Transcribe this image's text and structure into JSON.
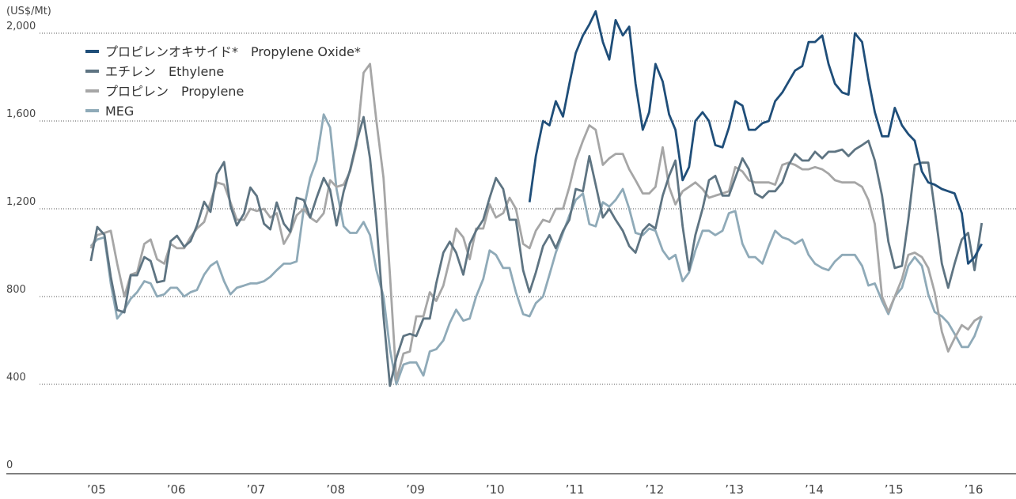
{
  "chart_data": {
    "type": "line",
    "y_label": "(US$/Mt)",
    "legend_position": "top-left",
    "grid": true,
    "ylim": [
      0,
      2000
    ],
    "yticks": [
      0,
      400,
      800,
      {
        "value": 1200,
        "label": "1,200"
      },
      {
        "value": 1600,
        "label": "1,600"
      },
      {
        "value": 2000,
        "label": "2,000"
      }
    ],
    "xlim": [
      2003.94,
      2016.6
    ],
    "xticks": [
      {
        "value": 2005,
        "label": "’05"
      },
      {
        "value": 2006,
        "label": "’06"
      },
      {
        "value": 2007,
        "label": "’07"
      },
      {
        "value": 2008,
        "label": "’08"
      },
      {
        "value": 2009,
        "label": "’09"
      },
      {
        "value": 2010,
        "label": "’10"
      },
      {
        "value": 2011,
        "label": "’11"
      },
      {
        "value": 2012,
        "label": "’12"
      },
      {
        "value": 2013,
        "label": "’13"
      },
      {
        "value": 2014,
        "label": "’14"
      },
      {
        "value": 2015,
        "label": "’15"
      },
      {
        "value": 2016,
        "label": "’16"
      }
    ],
    "x": [
      2005.0,
      2005.08,
      2005.17,
      2005.25,
      2005.33,
      2005.42,
      2005.5,
      2005.58,
      2005.67,
      2005.75,
      2005.83,
      2005.92,
      2006.0,
      2006.08,
      2006.17,
      2006.25,
      2006.33,
      2006.42,
      2006.5,
      2006.58,
      2006.67,
      2006.75,
      2006.83,
      2006.92,
      2007.0,
      2007.08,
      2007.17,
      2007.25,
      2007.33,
      2007.42,
      2007.5,
      2007.58,
      2007.67,
      2007.75,
      2007.83,
      2007.92,
      2008.0,
      2008.08,
      2008.17,
      2008.25,
      2008.33,
      2008.42,
      2008.5,
      2008.58,
      2008.67,
      2008.75,
      2008.83,
      2008.92,
      2009.0,
      2009.08,
      2009.17,
      2009.25,
      2009.33,
      2009.42,
      2009.5,
      2009.58,
      2009.67,
      2009.75,
      2009.83,
      2009.92,
      2010.0,
      2010.08,
      2010.17,
      2010.25,
      2010.33,
      2010.42,
      2010.5,
      2010.58,
      2010.67,
      2010.75,
      2010.83,
      2010.92,
      2011.0,
      2011.08,
      2011.17,
      2011.25,
      2011.33,
      2011.42,
      2011.5,
      2011.58,
      2011.67,
      2011.75,
      2011.83,
      2011.92,
      2012.0,
      2012.08,
      2012.17,
      2012.25,
      2012.33,
      2012.42,
      2012.5,
      2012.58,
      2012.67,
      2012.75,
      2012.83,
      2012.92,
      2013.0,
      2013.08,
      2013.17,
      2013.25,
      2013.33,
      2013.42,
      2013.5,
      2013.58,
      2013.67,
      2013.75,
      2013.83,
      2013.92,
      2014.0,
      2014.08,
      2014.17,
      2014.25,
      2014.33,
      2014.42,
      2014.5,
      2014.58,
      2014.67,
      2014.75,
      2014.83,
      2014.92,
      2015.0,
      2015.08,
      2015.17,
      2015.25,
      2015.33,
      2015.42,
      2015.5,
      2015.58,
      2015.67,
      2015.75,
      2015.83,
      2015.92,
      2016.0,
      2016.08,
      2016.17
    ],
    "series": [
      {
        "name": "プロピレンオキサイド*　Propylene Oxide*",
        "color": "#1f4e79",
        "values": [
          null,
          null,
          null,
          null,
          null,
          null,
          null,
          null,
          null,
          null,
          null,
          null,
          null,
          null,
          null,
          null,
          null,
          null,
          null,
          null,
          null,
          null,
          null,
          null,
          null,
          null,
          null,
          null,
          null,
          null,
          null,
          null,
          null,
          null,
          null,
          null,
          null,
          null,
          null,
          null,
          null,
          null,
          null,
          null,
          null,
          null,
          null,
          null,
          null,
          null,
          null,
          null,
          null,
          null,
          null,
          null,
          null,
          null,
          null,
          null,
          null,
          null,
          null,
          null,
          null,
          null,
          1230,
          1440,
          1600,
          1580,
          1690,
          1620,
          1770,
          1910,
          1990,
          2040,
          2100,
          1960,
          1880,
          2060,
          1990,
          2030,
          1770,
          1560,
          1640,
          1860,
          1780,
          1630,
          1560,
          1330,
          1390,
          1600,
          1640,
          1600,
          1490,
          1480,
          1570,
          1690,
          1670,
          1560,
          1560,
          1590,
          1600,
          1690,
          1730,
          1780,
          1830,
          1850,
          1960,
          1960,
          1990,
          1860,
          1770,
          1730,
          1720,
          2000,
          1960,
          1790,
          1640,
          1530,
          1530,
          1660,
          1580,
          1540,
          1510,
          1370,
          1320,
          1310,
          1290,
          1280,
          1270,
          1180,
          950,
          980,
          1040
        ]
      },
      {
        "name": "エチレン　Ethylene",
        "color": "#5e7482",
        "values": [
          962,
          1117,
          1081,
          890,
          739,
          728,
          897,
          897,
          980,
          962,
          865,
          872,
          1052,
          1077,
          1027,
          1052,
          1124,
          1232,
          1186,
          1358,
          1413,
          1214,
          1124,
          1178,
          1297,
          1258,
          1132,
          1106,
          1229,
          1132,
          1095,
          1250,
          1240,
          1160,
          1250,
          1340,
          1286,
          1124,
          1279,
          1377,
          1503,
          1618,
          1430,
          1142,
          710,
          393,
          520,
          620,
          630,
          620,
          700,
          700,
          860,
          1000,
          1050,
          1000,
          900,
          1040,
          1100,
          1150,
          1250,
          1340,
          1290,
          1150,
          1150,
          920,
          820,
          910,
          1030,
          1080,
          1020,
          1100,
          1150,
          1290,
          1280,
          1440,
          1310,
          1160,
          1200,
          1150,
          1100,
          1030,
          1000,
          1100,
          1130,
          1110,
          1260,
          1350,
          1420,
          1120,
          920,
          1080,
          1200,
          1330,
          1350,
          1260,
          1260,
          1340,
          1430,
          1380,
          1270,
          1250,
          1280,
          1280,
          1320,
          1400,
          1450,
          1420,
          1420,
          1460,
          1430,
          1460,
          1460,
          1470,
          1440,
          1470,
          1490,
          1510,
          1420,
          1260,
          1050,
          930,
          940,
          1150,
          1400,
          1410,
          1410,
          1200,
          950,
          840,
          950,
          1060,
          1090,
          920,
          1135
        ]
      },
      {
        "name": "プロピレン　Propylene",
        "color": "#a6a6a6",
        "values": [
          1020,
          1080,
          1090,
          1100,
          950,
          800,
          900,
          910,
          1040,
          1060,
          970,
          950,
          1040,
          1020,
          1020,
          1070,
          1110,
          1140,
          1230,
          1320,
          1310,
          1230,
          1150,
          1150,
          1200,
          1190,
          1200,
          1160,
          1180,
          1040,
          1090,
          1170,
          1200,
          1160,
          1140,
          1180,
          1330,
          1300,
          1310,
          1370,
          1490,
          1820,
          1860,
          1600,
          1340,
          900,
          420,
          540,
          550,
          710,
          710,
          820,
          780,
          850,
          970,
          1110,
          1070,
          970,
          1110,
          1110,
          1220,
          1160,
          1180,
          1250,
          1200,
          1040,
          1020,
          1100,
          1150,
          1140,
          1200,
          1200,
          1300,
          1420,
          1510,
          1580,
          1560,
          1400,
          1430,
          1450,
          1450,
          1380,
          1330,
          1270,
          1270,
          1300,
          1480,
          1300,
          1220,
          1280,
          1300,
          1320,
          1290,
          1250,
          1260,
          1270,
          1280,
          1390,
          1370,
          1330,
          1320,
          1320,
          1320,
          1310,
          1400,
          1410,
          1400,
          1380,
          1380,
          1390,
          1380,
          1360,
          1330,
          1320,
          1320,
          1320,
          1300,
          1240,
          1130,
          800,
          730,
          800,
          880,
          990,
          1000,
          980,
          930,
          820,
          640,
          550,
          610,
          670,
          650,
          690,
          710
        ]
      },
      {
        "name": "MEG",
        "color": "#8faab8",
        "values": [
          1030,
          1060,
          1070,
          860,
          700,
          740,
          790,
          820,
          870,
          860,
          800,
          810,
          840,
          840,
          800,
          820,
          830,
          900,
          940,
          960,
          870,
          810,
          840,
          850,
          860,
          860,
          870,
          890,
          920,
          950,
          950,
          960,
          1200,
          1340,
          1420,
          1630,
          1570,
          1290,
          1120,
          1090,
          1090,
          1140,
          1080,
          920,
          800,
          560,
          400,
          490,
          500,
          500,
          440,
          550,
          560,
          600,
          680,
          740,
          690,
          700,
          800,
          880,
          1010,
          990,
          930,
          930,
          820,
          720,
          710,
          770,
          800,
          900,
          1000,
          1090,
          1170,
          1240,
          1270,
          1130,
          1120,
          1230,
          1210,
          1240,
          1290,
          1200,
          1090,
          1080,
          1110,
          1100,
          1010,
          970,
          990,
          870,
          910,
          1010,
          1100,
          1100,
          1080,
          1100,
          1180,
          1190,
          1040,
          980,
          980,
          950,
          1030,
          1100,
          1070,
          1060,
          1040,
          1060,
          990,
          950,
          930,
          920,
          960,
          990,
          990,
          990,
          940,
          850,
          860,
          780,
          720,
          800,
          840,
          940,
          980,
          940,
          810,
          730,
          710,
          680,
          630,
          570,
          570,
          620,
          710
        ]
      }
    ]
  }
}
